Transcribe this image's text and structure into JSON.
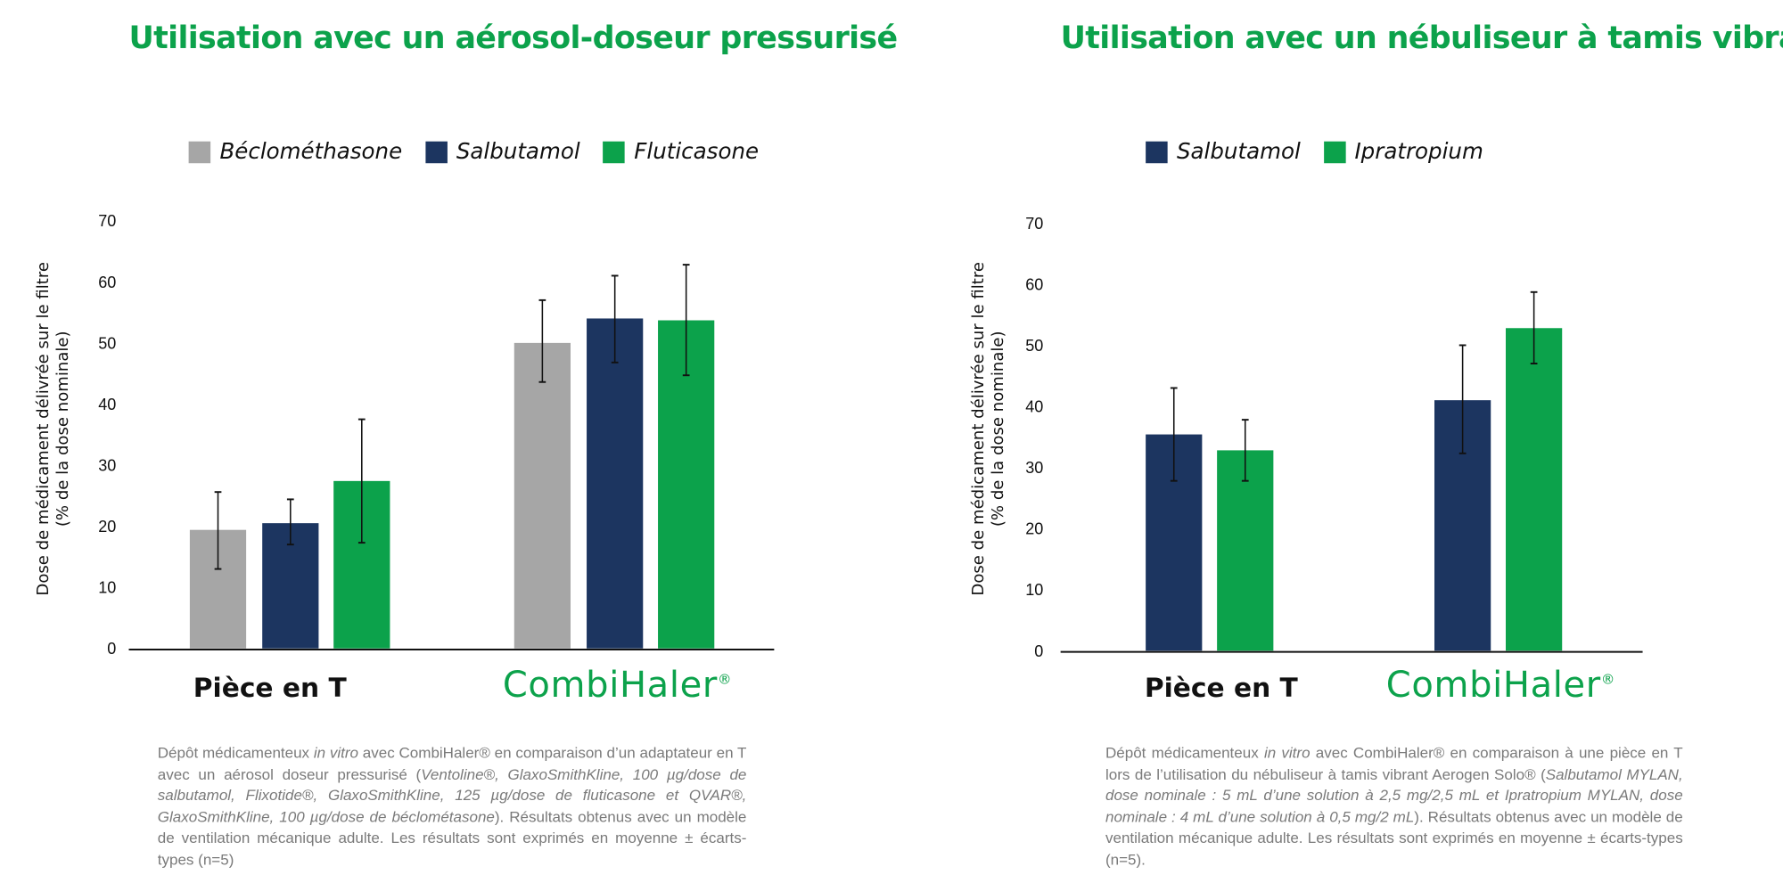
{
  "colors": {
    "title": "#0ca24b",
    "gray": "#a6a6a6",
    "navy": "#1c3560",
    "green": "#0ca24b"
  },
  "left": {
    "title": "Utilisation avec un aérosol-doseur pressurisé",
    "legend": [
      "Béclométhasone",
      "Salbutamol",
      "Fluticasone"
    ],
    "ylabel_line1": "Dose de médicament délivrée sur le filtre",
    "ylabel_line2": "(% de la dose nominale)",
    "category1": "Pièce en T",
    "logo": "CombiHaler",
    "caption": {
      "p1": "Dépôt médicamenteux ",
      "i1": "in vitro",
      "p2": " avec CombiHaler® en comparaison d’un adaptateur en T avec un aérosol doseur pressurisé (",
      "i2": "Ventoline®, GlaxoSmithKline, 100 µg/dose de salbutamol, Flixotide®, GlaxoSmithKline, 125 µg/dose de fluticasone et QVAR®, GlaxoSmithKline, 100 µg/dose de béclométasone",
      "p3": "). Résultats obtenus avec un modèle de ventilation mécanique adulte. Les résultats sont exprimés en moyenne ± écarts-types (n=5)"
    }
  },
  "right": {
    "title": "Utilisation avec un nébuliseur à tamis vibrant",
    "legend": [
      "Salbutamol",
      "Ipratropium"
    ],
    "ylabel_line1": "Dose de médicament délivrée sur le filtre",
    "ylabel_line2": "(% de la dose nominale)",
    "category1": "Pièce en T",
    "logo": "CombiHaler",
    "caption": {
      "p1": "Dépôt médicamenteux ",
      "i1": "in vitro",
      "p2": " avec CombiHaler® en comparaison à une pièce en T lors de l’utilisation du nébuliseur à tamis vibrant Aerogen Solo® (",
      "i2": "Salbutamol MYLAN, dose nominale : 5 mL d’une solution à 2,5 mg/2,5 mL et Ipratropium MYLAN, dose nominale : 4 mL d’une solution à 0,5 mg/2 mL",
      "p3": "). Résultats obtenus avec un modèle de ventilation mécanique adulte. Les résultats sont exprimés en moyenne ± écarts-types (n=5)."
    }
  },
  "chart_data": [
    {
      "type": "bar",
      "title": "Utilisation avec un aérosol-doseur pressurisé",
      "categories": [
        "Pièce en T",
        "CombiHaler"
      ],
      "ylabel": "Dose de médicament délivrée sur le filtre (% de la dose nominale)",
      "ylim": [
        0,
        70
      ],
      "yticks": [
        0,
        10,
        20,
        30,
        40,
        50,
        60,
        70
      ],
      "grid": false,
      "legend": "top",
      "series": [
        {
          "name": "Béclométhasone",
          "color": "#a6a6a6",
          "values": [
            19.4,
            50.0
          ],
          "err_low": [
            13.0,
            43.6
          ],
          "err_high": [
            25.6,
            57.0
          ]
        },
        {
          "name": "Salbutamol",
          "color": "#1c3560",
          "values": [
            20.5,
            54.0
          ],
          "err_low": [
            17.0,
            46.8
          ],
          "err_high": [
            24.4,
            61.0
          ]
        },
        {
          "name": "Fluticasone",
          "color": "#0ca24b",
          "values": [
            27.4,
            53.7
          ],
          "err_low": [
            17.3,
            44.7
          ],
          "err_high": [
            37.5,
            62.8
          ]
        }
      ]
    },
    {
      "type": "bar",
      "title": "Utilisation avec un nébuliseur à tamis vibrant",
      "categories": [
        "Pièce en T",
        "CombiHaler"
      ],
      "ylabel": "Dose de médicament délivrée sur le filtre (% de la dose nominale)",
      "ylim": [
        0,
        70
      ],
      "yticks": [
        0,
        10,
        20,
        30,
        40,
        50,
        60,
        70
      ],
      "grid": false,
      "legend": "top",
      "series": [
        {
          "name": "Salbutamol",
          "color": "#1c3560",
          "values": [
            35.4,
            41.0
          ],
          "err_low": [
            27.8,
            32.3
          ],
          "err_high": [
            43.0,
            50.0
          ]
        },
        {
          "name": "Ipratropium",
          "color": "#0ca24b",
          "values": [
            32.8,
            52.8
          ],
          "err_low": [
            27.8,
            47.0
          ],
          "err_high": [
            37.8,
            58.7
          ]
        }
      ]
    }
  ]
}
